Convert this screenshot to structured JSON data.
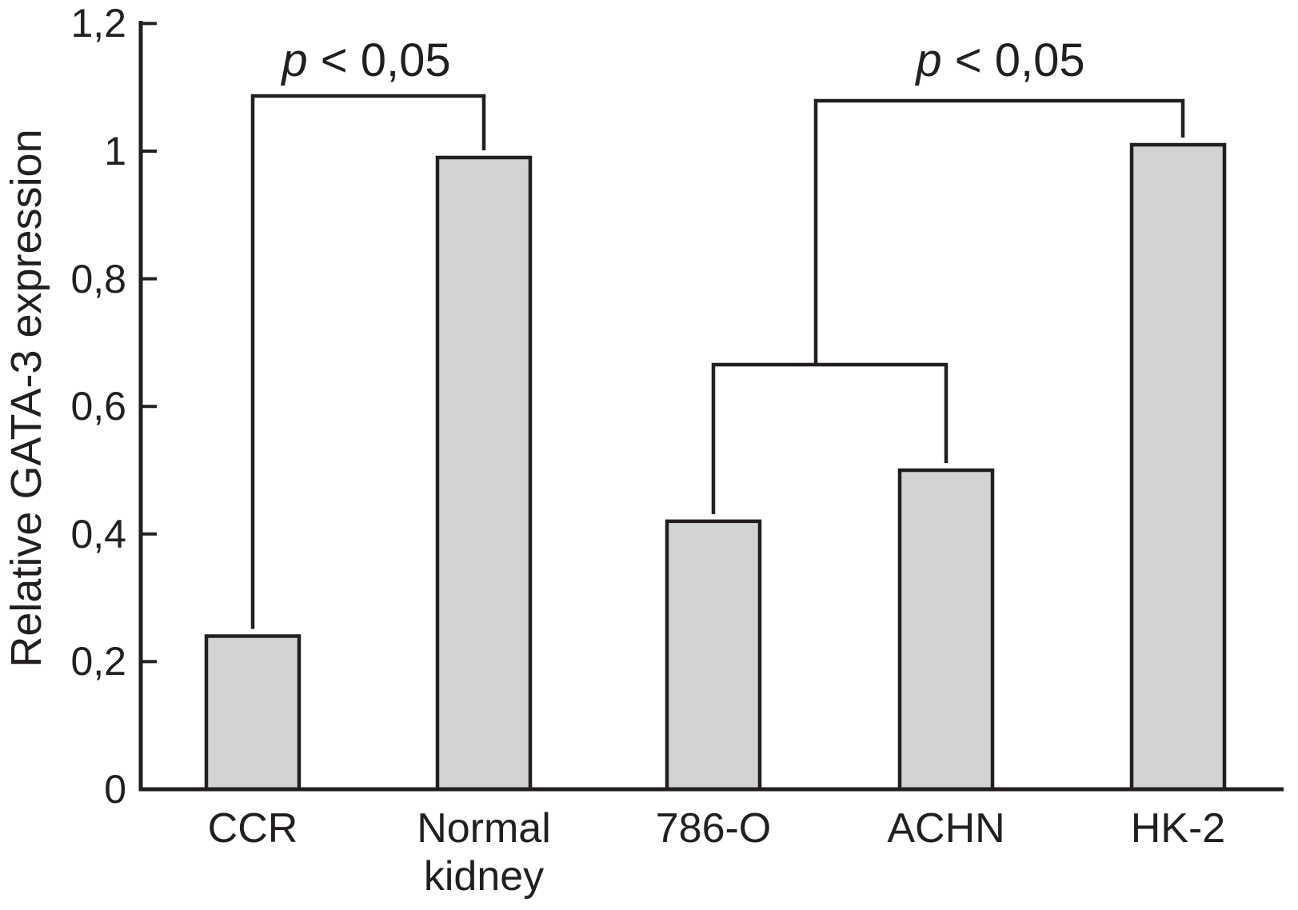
{
  "chart_data": {
    "type": "bar",
    "categories": [
      "CCR",
      "Normal kidney",
      "786-O",
      "ACHN",
      "HK-2"
    ],
    "values": [
      0.24,
      0.99,
      0.42,
      0.5,
      1.01
    ],
    "title": "",
    "xlabel": "",
    "ylabel": "Relative GATA-3 expression",
    "ylim": [
      0,
      1.2
    ],
    "yticks": [
      0,
      0.2,
      0.4,
      0.6,
      0.8,
      1,
      1.2
    ],
    "ytick_labels": [
      "0",
      "0,2",
      "0,4",
      "0,6",
      "0,8",
      "1",
      "1,2"
    ],
    "decimal_separator": ",",
    "grid": false,
    "legend": null,
    "bar_fill_color": "#d2d3d5",
    "ink_color": "#231f20",
    "annotations": [
      {
        "label": "p < 0,05",
        "type": "significance-bracket",
        "compares": [
          "CCR",
          "Normal kidney"
        ]
      },
      {
        "label": "p < 0,05",
        "type": "significance-bracket",
        "compares": [
          "HK-2",
          [
            "786-O",
            "ACHN"
          ]
        ]
      }
    ]
  }
}
